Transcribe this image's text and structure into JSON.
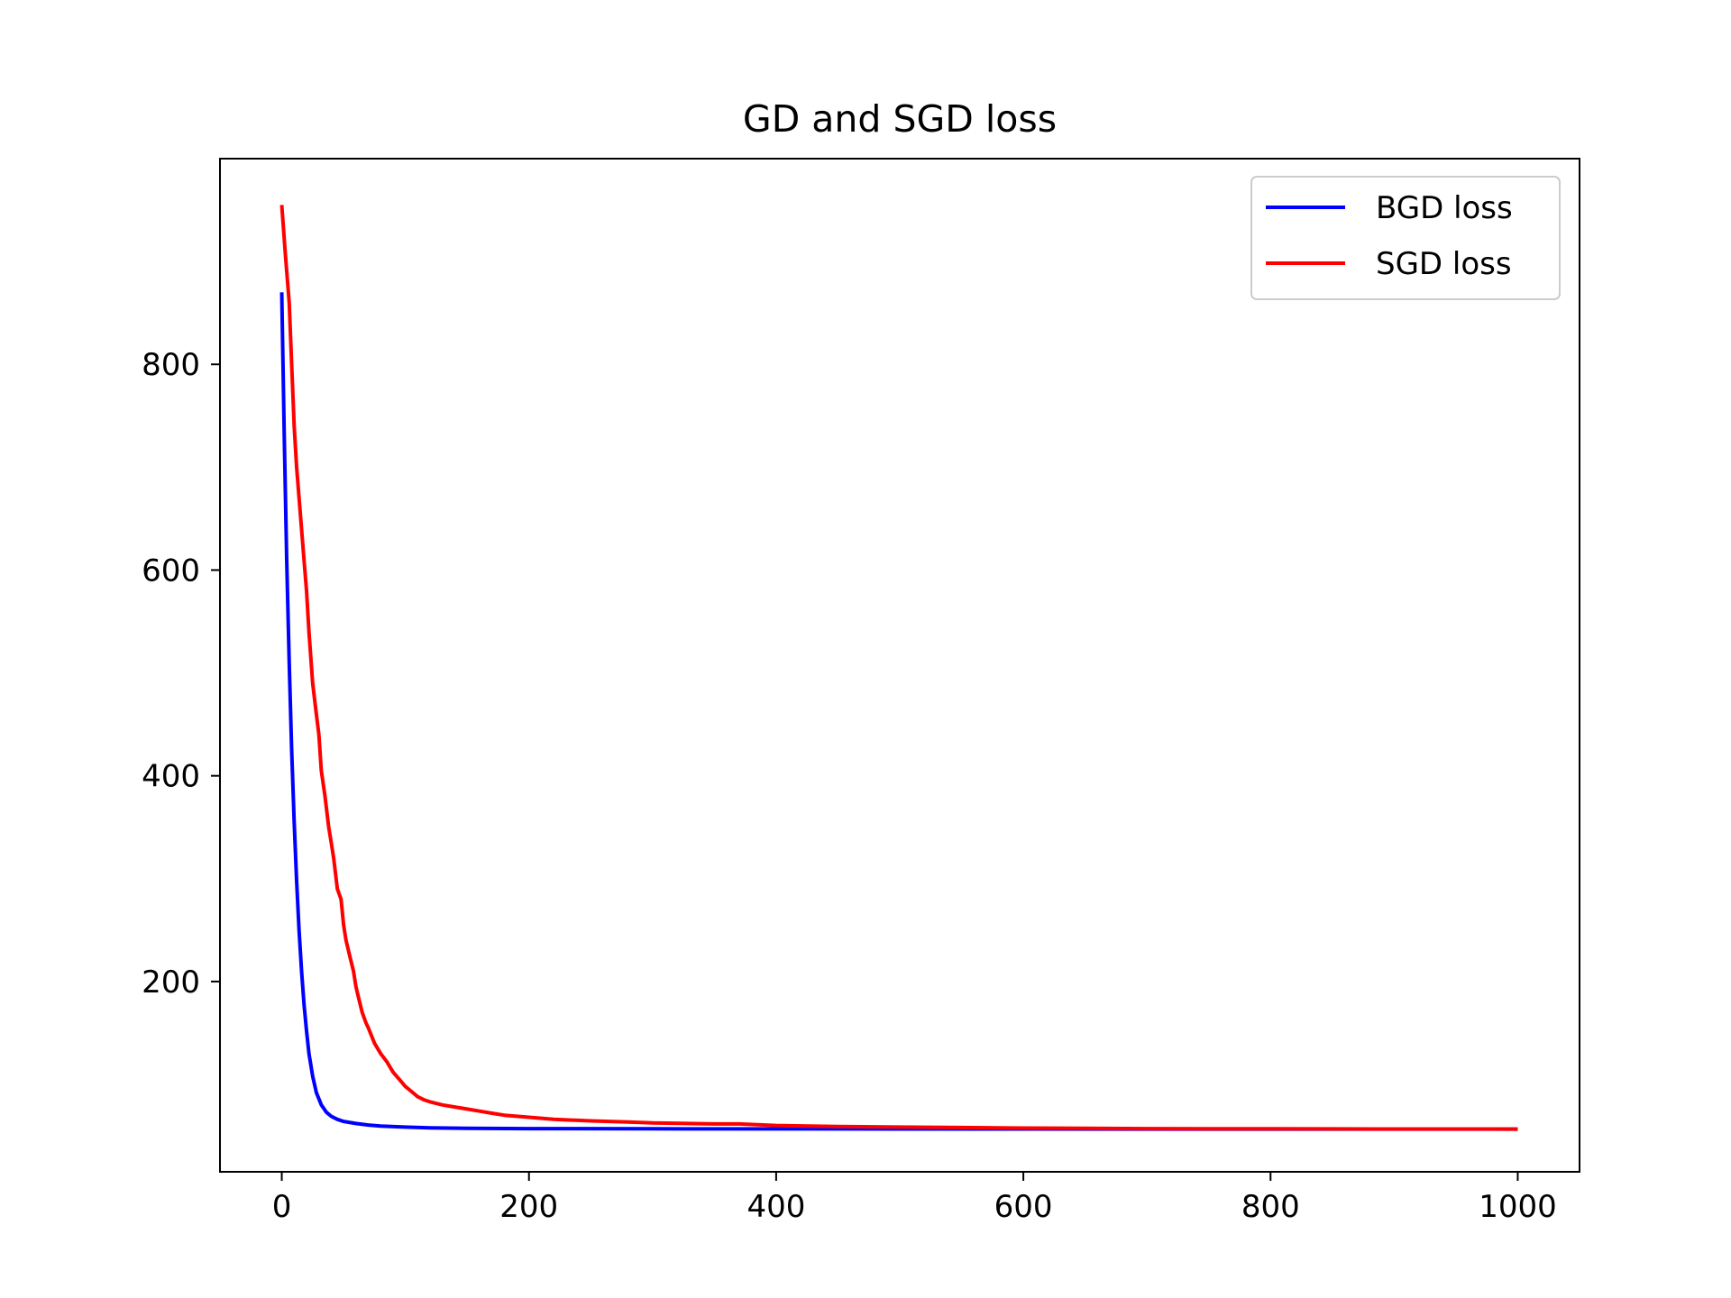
{
  "chart_data": {
    "type": "line",
    "title": "GD and SGD loss",
    "xlabel": "",
    "ylabel": "",
    "xlim": [
      -50,
      1050
    ],
    "ylim": [
      15,
      1000
    ],
    "xticks": [
      0,
      200,
      400,
      600,
      800,
      1000
    ],
    "yticks": [
      200,
      400,
      600,
      800
    ],
    "grid": false,
    "legend_position": "top-right",
    "series": [
      {
        "name": "BGD loss",
        "color": "#0000ff",
        "x": [
          0,
          2,
          4,
          6,
          8,
          10,
          12,
          14,
          16,
          18,
          20,
          22,
          25,
          28,
          32,
          36,
          40,
          45,
          50,
          60,
          70,
          80,
          100,
          120,
          150,
          200,
          300,
          400,
          500,
          600,
          700,
          800,
          900,
          1000
        ],
        "y": [
          870,
          730,
          610,
          510,
          425,
          355,
          298,
          250,
          210,
          178,
          152,
          130,
          108,
          92,
          80,
          73,
          69,
          66,
          64,
          62,
          60.5,
          59.5,
          58.5,
          57.8,
          57.3,
          57,
          56.8,
          56.7,
          56.6,
          56.6,
          56.5,
          56.5,
          56.5,
          56.5
        ]
      },
      {
        "name": "SGD loss",
        "color": "#ff0000",
        "x": [
          0,
          3,
          6,
          8,
          10,
          12,
          15,
          18,
          20,
          22,
          25,
          28,
          30,
          32,
          35,
          38,
          40,
          42,
          45,
          48,
          50,
          52,
          55,
          58,
          60,
          62,
          65,
          68,
          70,
          75,
          80,
          85,
          90,
          95,
          100,
          105,
          110,
          115,
          120,
          130,
          140,
          150,
          160,
          170,
          180,
          200,
          220,
          250,
          280,
          300,
          350,
          370,
          400,
          450,
          500,
          550,
          600,
          650,
          700,
          750,
          800,
          850,
          900,
          950,
          1000
        ],
        "y": [
          955,
          905,
          860,
          800,
          740,
          700,
          655,
          610,
          580,
          540,
          490,
          460,
          440,
          405,
          380,
          350,
          335,
          320,
          290,
          280,
          255,
          240,
          225,
          210,
          195,
          185,
          170,
          160,
          155,
          140,
          130,
          122,
          112,
          105,
          98,
          93,
          88,
          85,
          83,
          80,
          78,
          76,
          74,
          72,
          70,
          68,
          66,
          64.5,
          63.5,
          62.5,
          61.5,
          61.5,
          60,
          59,
          58.5,
          58,
          57.5,
          57.2,
          57,
          56.9,
          56.8,
          56.7,
          56.6,
          56.6,
          56.5
        ]
      }
    ]
  }
}
